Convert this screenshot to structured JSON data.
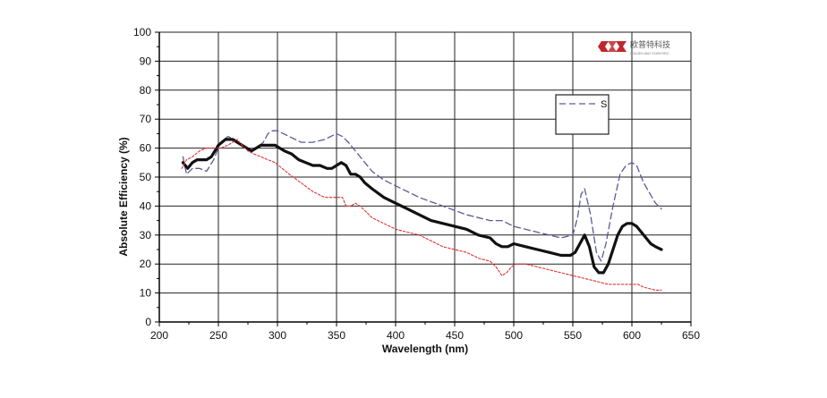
{
  "chart_data": {
    "type": "line",
    "title": "",
    "xlabel": "Wavelength (nm)",
    "ylabel": "Absolute Efficiency (%)",
    "xlim": [
      200,
      650
    ],
    "ylim": [
      0,
      100
    ],
    "xticks": [
      200,
      250,
      300,
      350,
      400,
      450,
      500,
      550,
      600,
      650
    ],
    "yticks": [
      0,
      10,
      20,
      30,
      40,
      50,
      60,
      70,
      80,
      90,
      100
    ],
    "grid": true,
    "legend": {
      "position": "top-right",
      "entries": [
        "S",
        ""
      ]
    },
    "series": [
      {
        "name": "S",
        "color": "#5a5a9a",
        "style": "dashed",
        "x": [
          220,
          223,
          228,
          234,
          240,
          246,
          252,
          258,
          264,
          270,
          276,
          282,
          288,
          292,
          296,
          300,
          305,
          310,
          320,
          330,
          340,
          350,
          355,
          360,
          370,
          380,
          390,
          400,
          420,
          440,
          460,
          480,
          490,
          500,
          520,
          540,
          550,
          554,
          557,
          560,
          565,
          570,
          574,
          578,
          584,
          590,
          595,
          600,
          604,
          610,
          620,
          625
        ],
        "y": [
          57,
          51,
          53,
          53,
          52,
          56,
          62,
          64,
          63,
          61,
          60,
          60,
          62,
          65,
          66,
          66,
          65,
          64,
          62,
          62,
          63,
          65,
          64,
          62,
          57,
          52,
          49,
          47,
          43,
          40,
          37,
          35,
          35,
          33,
          31,
          29,
          30,
          36,
          44,
          46,
          37,
          24,
          21,
          27,
          40,
          51,
          54,
          55,
          54,
          48,
          41,
          39
        ]
      },
      {
        "name": "",
        "color": "#111111",
        "style": "solid-thick",
        "x": [
          220,
          224,
          228,
          232,
          236,
          240,
          244,
          250,
          256,
          262,
          266,
          270,
          274,
          278,
          282,
          286,
          290,
          294,
          298,
          302,
          306,
          312,
          318,
          324,
          330,
          336,
          342,
          346,
          350,
          354,
          358,
          362,
          366,
          370,
          374,
          380,
          390,
          400,
          410,
          420,
          430,
          440,
          450,
          460,
          470,
          480,
          485,
          490,
          495,
          500,
          510,
          520,
          530,
          540,
          548,
          552,
          556,
          560,
          564,
          568,
          572,
          576,
          580,
          584,
          588,
          592,
          596,
          600,
          604,
          608,
          612,
          616,
          620,
          625
        ],
        "y": [
          55,
          53,
          55,
          56,
          56,
          56,
          57,
          61,
          63,
          63,
          62,
          61,
          60,
          59,
          60,
          61,
          61,
          61,
          61,
          60,
          59,
          58,
          56,
          55,
          54,
          54,
          53,
          53,
          54,
          55,
          54,
          51,
          51,
          50,
          48,
          46,
          43,
          41,
          39,
          37,
          35,
          34,
          33,
          32,
          30,
          29,
          27,
          26,
          26,
          27,
          26,
          25,
          24,
          23,
          23,
          24,
          27,
          30,
          26,
          19,
          17,
          17,
          20,
          25,
          30,
          33,
          34,
          34,
          33,
          31,
          29,
          27,
          26,
          25
        ]
      },
      {
        "name": "",
        "color": "#e03030",
        "style": "dotted",
        "x": [
          219,
          223,
          228,
          234,
          240,
          246,
          252,
          258,
          262,
          266,
          270,
          275,
          280,
          286,
          292,
          298,
          304,
          310,
          320,
          330,
          340,
          350,
          355,
          358,
          362,
          366,
          370,
          375,
          380,
          390,
          400,
          410,
          420,
          430,
          440,
          450,
          460,
          470,
          480,
          485,
          490,
          494,
          498,
          502,
          506,
          510,
          520,
          530,
          540,
          550,
          560,
          570,
          580,
          590,
          600,
          605,
          610,
          620,
          625
        ],
        "y": [
          53,
          56,
          57,
          59,
          60,
          60,
          60,
          61,
          62,
          63,
          61,
          59,
          58,
          57,
          56,
          55,
          53,
          51,
          48,
          45,
          43,
          43,
          43,
          40,
          40,
          41,
          40,
          38,
          36,
          34,
          32,
          31,
          30,
          28,
          26,
          25,
          24,
          22,
          21,
          19,
          16,
          17,
          19,
          20,
          20,
          20,
          19,
          18,
          17,
          16,
          15,
          14,
          13,
          13,
          13,
          13,
          12,
          11,
          11
        ]
      }
    ]
  },
  "logo": {
    "cn_text": "欧普特科技",
    "en_text": "GOLDEN WAY SCIENTIFIC",
    "color": "#c0282d"
  }
}
